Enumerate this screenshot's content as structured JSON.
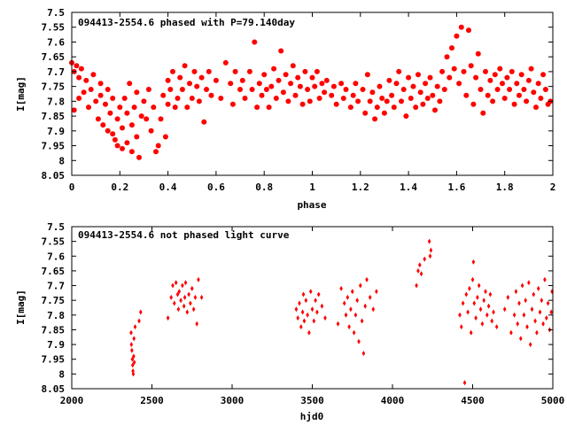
{
  "colors": {
    "points": "#ff0000",
    "axes": "#000000",
    "background": "#ffffff"
  },
  "chart_data": [
    {
      "type": "scatter",
      "title": "094413-2554.6 phased with P=79.140day",
      "xlabel": "phase",
      "ylabel": "I[mag]",
      "xlim": [
        0,
        2
      ],
      "ylim": [
        8.05,
        7.5
      ],
      "y_inverted": true,
      "grid": false,
      "marker": "filled-circle-large",
      "x_ticks": [
        "0",
        "0.2",
        "0.4",
        "0.6",
        "0.8",
        "1",
        "1.2",
        "1.4",
        "1.6",
        "1.8",
        "2"
      ],
      "x_tick_values": [
        0,
        0.2,
        0.4,
        0.6,
        0.8,
        1.0,
        1.2,
        1.4,
        1.6,
        1.8,
        2.0
      ],
      "y_ticks": [
        "7.5",
        "7.55",
        "7.6",
        "7.65",
        "7.7",
        "7.75",
        "7.8",
        "7.85",
        "7.9",
        "7.95",
        "8",
        "8.05"
      ],
      "y_tick_values": [
        7.5,
        7.55,
        7.6,
        7.65,
        7.7,
        7.75,
        7.8,
        7.85,
        7.9,
        7.95,
        8.0,
        8.05
      ],
      "points": [
        [
          0.0,
          7.67
        ],
        [
          0.01,
          7.7
        ],
        [
          0.01,
          7.83
        ],
        [
          0.02,
          7.68
        ],
        [
          0.03,
          7.72
        ],
        [
          0.03,
          7.79
        ],
        [
          0.04,
          7.69
        ],
        [
          0.05,
          7.77
        ],
        [
          0.06,
          7.73
        ],
        [
          0.07,
          7.82
        ],
        [
          0.08,
          7.76
        ],
        [
          0.09,
          7.71
        ],
        [
          0.1,
          7.8
        ],
        [
          0.11,
          7.86
        ],
        [
          0.12,
          7.78
        ],
        [
          0.12,
          7.74
        ],
        [
          0.13,
          7.88
        ],
        [
          0.14,
          7.81
        ],
        [
          0.15,
          7.9
        ],
        [
          0.15,
          7.76
        ],
        [
          0.16,
          7.84
        ],
        [
          0.17,
          7.91
        ],
        [
          0.17,
          7.79
        ],
        [
          0.18,
          7.93
        ],
        [
          0.19,
          7.86
        ],
        [
          0.19,
          7.95
        ],
        [
          0.2,
          7.82
        ],
        [
          0.21,
          7.96
        ],
        [
          0.21,
          7.89
        ],
        [
          0.22,
          7.79
        ],
        [
          0.23,
          7.94
        ],
        [
          0.23,
          7.84
        ],
        [
          0.24,
          7.74
        ],
        [
          0.25,
          7.88
        ],
        [
          0.25,
          7.97
        ],
        [
          0.26,
          7.82
        ],
        [
          0.27,
          7.77
        ],
        [
          0.27,
          7.92
        ],
        [
          0.28,
          7.99
        ],
        [
          0.29,
          7.85
        ],
        [
          0.3,
          7.8
        ],
        [
          0.31,
          7.86
        ],
        [
          0.32,
          7.76
        ],
        [
          0.33,
          7.9
        ],
        [
          0.34,
          7.82
        ],
        [
          0.35,
          7.97
        ],
        [
          0.36,
          7.95
        ],
        [
          0.37,
          7.86
        ],
        [
          0.38,
          7.78
        ],
        [
          0.39,
          7.92
        ],
        [
          0.4,
          7.81
        ],
        [
          0.4,
          7.73
        ],
        [
          0.41,
          7.76
        ],
        [
          0.42,
          7.7
        ],
        [
          0.43,
          7.82
        ],
        [
          0.44,
          7.79
        ],
        [
          0.45,
          7.72
        ],
        [
          0.46,
          7.76
        ],
        [
          0.47,
          7.68
        ],
        [
          0.48,
          7.82
        ],
        [
          0.49,
          7.74
        ],
        [
          0.5,
          7.79
        ],
        [
          0.51,
          7.7
        ],
        [
          0.52,
          7.75
        ],
        [
          0.53,
          7.8
        ],
        [
          0.54,
          7.72
        ],
        [
          0.55,
          7.87
        ],
        [
          0.56,
          7.76
        ],
        [
          0.57,
          7.7
        ],
        [
          0.58,
          7.78
        ],
        [
          0.6,
          7.73
        ],
        [
          0.62,
          7.79
        ],
        [
          0.64,
          7.67
        ],
        [
          0.66,
          7.74
        ],
        [
          0.67,
          7.81
        ],
        [
          0.68,
          7.7
        ],
        [
          0.7,
          7.76
        ],
        [
          0.71,
          7.73
        ],
        [
          0.72,
          7.79
        ],
        [
          0.74,
          7.7
        ],
        [
          0.75,
          7.76
        ],
        [
          0.76,
          7.6
        ],
        [
          0.77,
          7.82
        ],
        [
          0.78,
          7.74
        ],
        [
          0.79,
          7.78
        ],
        [
          0.8,
          7.71
        ],
        [
          0.81,
          7.76
        ],
        [
          0.82,
          7.82
        ],
        [
          0.83,
          7.75
        ],
        [
          0.84,
          7.69
        ],
        [
          0.85,
          7.79
        ],
        [
          0.86,
          7.73
        ],
        [
          0.87,
          7.63
        ],
        [
          0.88,
          7.77
        ],
        [
          0.89,
          7.71
        ],
        [
          0.9,
          7.8
        ],
        [
          0.91,
          7.74
        ],
        [
          0.92,
          7.68
        ],
        [
          0.93,
          7.78
        ],
        [
          0.94,
          7.72
        ],
        [
          0.95,
          7.75
        ],
        [
          0.96,
          7.81
        ],
        [
          0.97,
          7.7
        ],
        [
          0.98,
          7.76
        ],
        [
          0.99,
          7.8
        ],
        [
          1.0,
          7.72
        ],
        [
          1.01,
          7.75
        ],
        [
          1.02,
          7.7
        ],
        [
          1.03,
          7.79
        ],
        [
          1.04,
          7.74
        ],
        [
          1.05,
          7.77
        ],
        [
          1.06,
          7.73
        ],
        [
          1.08,
          7.78
        ],
        [
          1.09,
          7.75
        ],
        [
          1.1,
          7.81
        ],
        [
          1.12,
          7.74
        ],
        [
          1.13,
          7.79
        ],
        [
          1.14,
          7.76
        ],
        [
          1.16,
          7.82
        ],
        [
          1.17,
          7.78
        ],
        [
          1.18,
          7.74
        ],
        [
          1.19,
          7.8
        ],
        [
          1.21,
          7.76
        ],
        [
          1.22,
          7.84
        ],
        [
          1.23,
          7.71
        ],
        [
          1.24,
          7.8
        ],
        [
          1.25,
          7.77
        ],
        [
          1.26,
          7.86
        ],
        [
          1.27,
          7.82
        ],
        [
          1.28,
          7.75
        ],
        [
          1.29,
          7.79
        ],
        [
          1.3,
          7.84
        ],
        [
          1.31,
          7.8
        ],
        [
          1.32,
          7.73
        ],
        [
          1.33,
          7.78
        ],
        [
          1.34,
          7.82
        ],
        [
          1.35,
          7.74
        ],
        [
          1.36,
          7.7
        ],
        [
          1.37,
          7.8
        ],
        [
          1.38,
          7.76
        ],
        [
          1.39,
          7.85
        ],
        [
          1.4,
          7.72
        ],
        [
          1.41,
          7.79
        ],
        [
          1.42,
          7.75
        ],
        [
          1.43,
          7.82
        ],
        [
          1.44,
          7.71
        ],
        [
          1.45,
          7.77
        ],
        [
          1.46,
          7.81
        ],
        [
          1.47,
          7.74
        ],
        [
          1.48,
          7.79
        ],
        [
          1.49,
          7.72
        ],
        [
          1.5,
          7.78
        ],
        [
          1.51,
          7.83
        ],
        [
          1.52,
          7.75
        ],
        [
          1.53,
          7.8
        ],
        [
          1.54,
          7.7
        ],
        [
          1.55,
          7.76
        ],
        [
          1.56,
          7.65
        ],
        [
          1.57,
          7.72
        ],
        [
          1.58,
          7.62
        ],
        [
          1.59,
          7.69
        ],
        [
          1.6,
          7.58
        ],
        [
          1.61,
          7.74
        ],
        [
          1.62,
          7.55
        ],
        [
          1.63,
          7.7
        ],
        [
          1.64,
          7.78
        ],
        [
          1.65,
          7.56
        ],
        [
          1.66,
          7.68
        ],
        [
          1.67,
          7.81
        ],
        [
          1.68,
          7.72
        ],
        [
          1.69,
          7.64
        ],
        [
          1.7,
          7.76
        ],
        [
          1.71,
          7.84
        ],
        [
          1.72,
          7.7
        ],
        [
          1.73,
          7.78
        ],
        [
          1.74,
          7.73
        ],
        [
          1.75,
          7.8
        ],
        [
          1.76,
          7.71
        ],
        [
          1.77,
          7.76
        ],
        [
          1.78,
          7.69
        ],
        [
          1.79,
          7.74
        ],
        [
          1.8,
          7.79
        ],
        [
          1.81,
          7.72
        ],
        [
          1.82,
          7.76
        ],
        [
          1.83,
          7.7
        ],
        [
          1.84,
          7.81
        ],
        [
          1.85,
          7.74
        ],
        [
          1.86,
          7.78
        ],
        [
          1.87,
          7.71
        ],
        [
          1.88,
          7.76
        ],
        [
          1.89,
          7.8
        ],
        [
          1.9,
          7.73
        ],
        [
          1.91,
          7.69
        ],
        [
          1.92,
          7.77
        ],
        [
          1.93,
          7.82
        ],
        [
          1.94,
          7.74
        ],
        [
          1.95,
          7.79
        ],
        [
          1.96,
          7.71
        ],
        [
          1.97,
          7.76
        ],
        [
          1.98,
          7.81
        ],
        [
          1.99,
          7.8
        ]
      ]
    },
    {
      "type": "scatter",
      "title": "094413-2554.6 not phased light curve",
      "xlabel": "hjd0",
      "ylabel": "I[mag]",
      "xlim": [
        2000,
        5000
      ],
      "ylim": [
        8.05,
        7.5
      ],
      "y_inverted": true,
      "grid": false,
      "marker": "filled-diamond-small",
      "x_ticks": [
        "2000",
        "2500",
        "3000",
        "3500",
        "4000",
        "4500",
        "5000"
      ],
      "x_tick_values": [
        2000,
        2500,
        3000,
        3500,
        4000,
        4500,
        5000
      ],
      "y_ticks": [
        "7.5",
        "7.55",
        "7.6",
        "7.65",
        "7.7",
        "7.75",
        "7.8",
        "7.85",
        "7.9",
        "7.95",
        "8",
        "8.05"
      ],
      "y_tick_values": [
        7.5,
        7.55,
        7.6,
        7.65,
        7.7,
        7.75,
        7.8,
        7.85,
        7.9,
        7.95,
        8.0,
        8.05
      ],
      "points": [
        [
          2370,
          7.86
        ],
        [
          2372,
          7.9
        ],
        [
          2375,
          7.92
        ],
        [
          2378,
          7.95
        ],
        [
          2380,
          7.97
        ],
        [
          2382,
          7.99
        ],
        [
          2384,
          8.0
        ],
        [
          2386,
          7.94
        ],
        [
          2388,
          7.88
        ],
        [
          2390,
          7.96
        ],
        [
          2395,
          7.84
        ],
        [
          2420,
          7.82
        ],
        [
          2430,
          7.79
        ],
        [
          2600,
          7.81
        ],
        [
          2620,
          7.74
        ],
        [
          2630,
          7.7
        ],
        [
          2640,
          7.76
        ],
        [
          2650,
          7.69
        ],
        [
          2660,
          7.73
        ],
        [
          2665,
          7.78
        ],
        [
          2670,
          7.72
        ],
        [
          2680,
          7.75
        ],
        [
          2690,
          7.7
        ],
        [
          2700,
          7.77
        ],
        [
          2705,
          7.74
        ],
        [
          2710,
          7.69
        ],
        [
          2720,
          7.79
        ],
        [
          2730,
          7.73
        ],
        [
          2740,
          7.76
        ],
        [
          2750,
          7.71
        ],
        [
          2760,
          7.78
        ],
        [
          2770,
          7.74
        ],
        [
          2780,
          7.83
        ],
        [
          2790,
          7.68
        ],
        [
          2810,
          7.74
        ],
        [
          3400,
          7.78
        ],
        [
          3410,
          7.81
        ],
        [
          3420,
          7.76
        ],
        [
          3430,
          7.84
        ],
        [
          3440,
          7.79
        ],
        [
          3445,
          7.73
        ],
        [
          3450,
          7.82
        ],
        [
          3460,
          7.75
        ],
        [
          3470,
          7.8
        ],
        [
          3480,
          7.86
        ],
        [
          3490,
          7.72
        ],
        [
          3500,
          7.78
        ],
        [
          3510,
          7.82
        ],
        [
          3520,
          7.75
        ],
        [
          3530,
          7.79
        ],
        [
          3540,
          7.73
        ],
        [
          3560,
          7.77
        ],
        [
          3580,
          7.81
        ],
        [
          3660,
          7.83
        ],
        [
          3680,
          7.71
        ],
        [
          3700,
          7.76
        ],
        [
          3710,
          7.8
        ],
        [
          3720,
          7.74
        ],
        [
          3730,
          7.84
        ],
        [
          3740,
          7.78
        ],
        [
          3750,
          7.72
        ],
        [
          3760,
          7.86
        ],
        [
          3770,
          7.8
        ],
        [
          3780,
          7.75
        ],
        [
          3790,
          7.89
        ],
        [
          3800,
          7.7
        ],
        [
          3810,
          7.82
        ],
        [
          3820,
          7.93
        ],
        [
          3830,
          7.77
        ],
        [
          3840,
          7.68
        ],
        [
          3860,
          7.74
        ],
        [
          3880,
          7.78
        ],
        [
          3900,
          7.72
        ],
        [
          4150,
          7.7
        ],
        [
          4160,
          7.65
        ],
        [
          4170,
          7.63
        ],
        [
          4180,
          7.66
        ],
        [
          4200,
          7.61
        ],
        [
          4230,
          7.55
        ],
        [
          4240,
          7.58
        ],
        [
          4235,
          7.6
        ],
        [
          4420,
          7.8
        ],
        [
          4430,
          7.84
        ],
        [
          4440,
          7.76
        ],
        [
          4450,
          8.03
        ],
        [
          4460,
          7.73
        ],
        [
          4470,
          7.79
        ],
        [
          4480,
          7.71
        ],
        [
          4490,
          7.86
        ],
        [
          4500,
          7.68
        ],
        [
          4505,
          7.62
        ],
        [
          4510,
          7.76
        ],
        [
          4520,
          7.81
        ],
        [
          4530,
          7.74
        ],
        [
          4540,
          7.7
        ],
        [
          4550,
          7.78
        ],
        [
          4560,
          7.83
        ],
        [
          4570,
          7.75
        ],
        [
          4580,
          7.72
        ],
        [
          4590,
          7.8
        ],
        [
          4600,
          7.77
        ],
        [
          4610,
          7.73
        ],
        [
          4620,
          7.82
        ],
        [
          4630,
          7.79
        ],
        [
          4650,
          7.84
        ],
        [
          4700,
          7.78
        ],
        [
          4720,
          7.74
        ],
        [
          4740,
          7.86
        ],
        [
          4760,
          7.8
        ],
        [
          4770,
          7.72
        ],
        [
          4780,
          7.83
        ],
        [
          4790,
          7.76
        ],
        [
          4800,
          7.88
        ],
        [
          4810,
          7.7
        ],
        [
          4820,
          7.8
        ],
        [
          4830,
          7.75
        ],
        [
          4840,
          7.84
        ],
        [
          4850,
          7.69
        ],
        [
          4860,
          7.9
        ],
        [
          4870,
          7.78
        ],
        [
          4880,
          7.73
        ],
        [
          4890,
          7.82
        ],
        [
          4900,
          7.86
        ],
        [
          4910,
          7.71
        ],
        [
          4920,
          7.79
        ],
        [
          4930,
          7.75
        ],
        [
          4940,
          7.83
        ],
        [
          4950,
          7.68
        ],
        [
          4960,
          7.81
        ],
        [
          4970,
          7.76
        ],
        [
          4980,
          7.85
        ],
        [
          4990,
          7.79
        ],
        [
          4995,
          7.72
        ]
      ]
    }
  ]
}
